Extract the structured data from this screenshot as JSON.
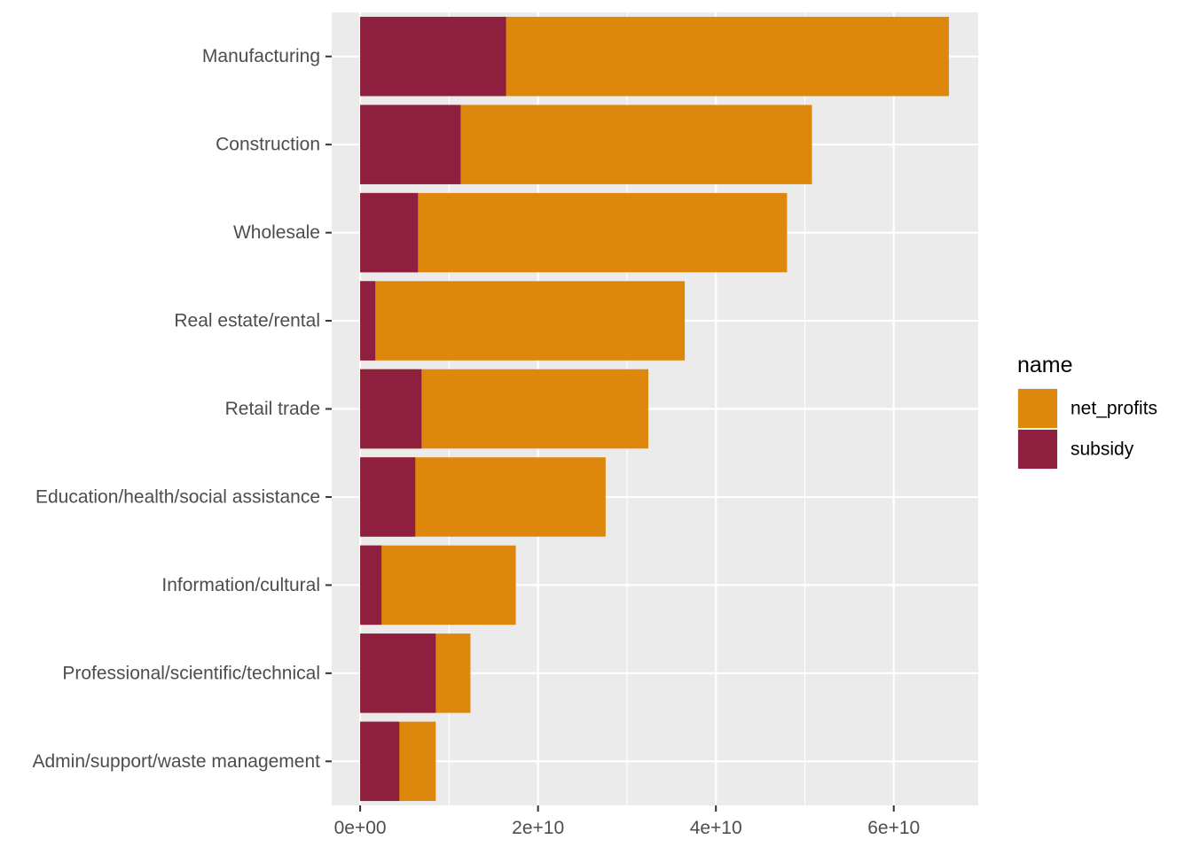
{
  "chart_data": {
    "type": "bar",
    "orientation": "horizontal",
    "stacking": "overlay",
    "categories": [
      "Manufacturing",
      "Construction",
      "Wholesale",
      "Real estate/rental",
      "Retail trade",
      "Education/health/social assistance",
      "Information/cultural",
      "Professional/scientific/technical",
      "Admin/support/waste management"
    ],
    "series": [
      {
        "name": "net_profits",
        "color": "#DE870D",
        "values": [
          66200000000,
          50800000000,
          48000000000,
          36500000000,
          32400000000,
          27600000000,
          17500000000,
          12400000000,
          8500000000
        ]
      },
      {
        "name": "subsidy",
        "color": "#8E1F3F",
        "values": [
          16400000000,
          11300000000,
          6500000000,
          1700000000,
          6900000000,
          6200000000,
          2400000000,
          8500000000,
          4400000000
        ]
      }
    ],
    "xlim": [
      -3200000000,
      69500000000
    ],
    "x_ticks": [
      0,
      20000000000,
      40000000000,
      60000000000
    ],
    "x_tick_labels": [
      "0e+00",
      "2e+10",
      "4e+10",
      "6e+10"
    ],
    "xlabel": "",
    "ylabel": "",
    "legend": {
      "title": "name",
      "placement": "right",
      "entries": [
        "net_profits",
        "subsidy"
      ]
    },
    "grid": true,
    "panel_background": "#EBEBEB"
  }
}
